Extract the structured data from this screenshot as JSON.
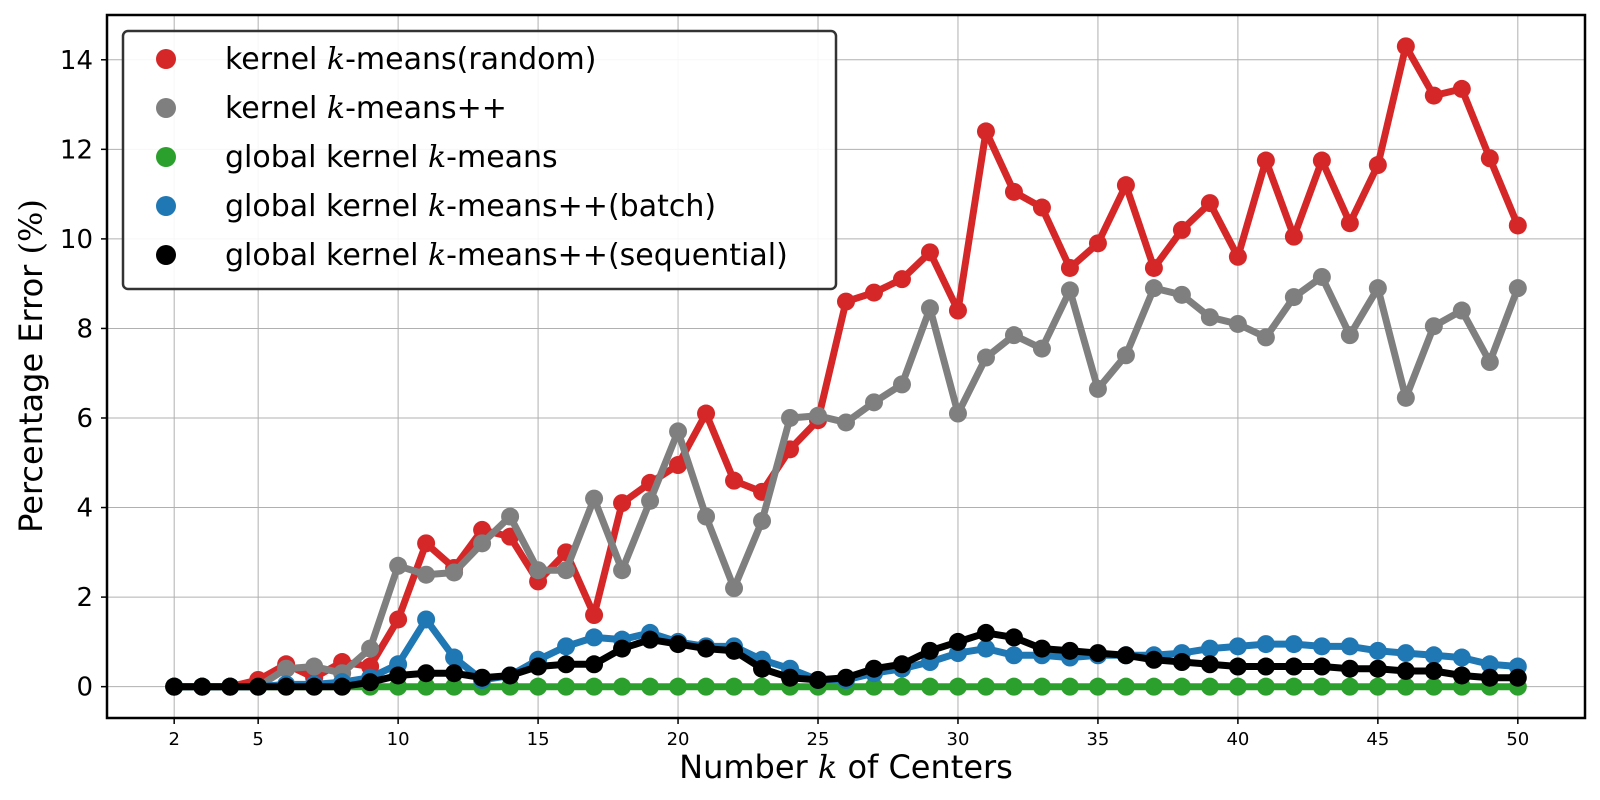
{
  "chart_data": {
    "type": "line",
    "title": "",
    "xlabel": "Number k of Centers",
    "xlabel_parts": [
      "Number ",
      "k",
      " of Centers"
    ],
    "ylabel": "Percentage Error (%)",
    "ylabel_parts": [
      "Percentage Error ",
      "(%)"
    ],
    "xlim": [
      -0.4,
      52.4
    ],
    "ylim": [
      -0.7,
      15.0
    ],
    "xticks": [
      2,
      5,
      10,
      15,
      20,
      25,
      30,
      35,
      40,
      45,
      50
    ],
    "xtick_labels": [
      "2",
      "5",
      "10",
      "15",
      "20",
      "25",
      "30",
      "35",
      "40",
      "45",
      "50"
    ],
    "yticks": [
      0,
      2,
      4,
      6,
      8,
      10,
      12,
      14
    ],
    "ytick_labels": [
      "0",
      "2",
      "4",
      "6",
      "8",
      "10",
      "12",
      "14"
    ],
    "grid": true,
    "legend_position": "top-left",
    "x": [
      2,
      3,
      4,
      5,
      6,
      7,
      8,
      9,
      10,
      11,
      12,
      13,
      14,
      15,
      16,
      17,
      18,
      19,
      20,
      21,
      22,
      23,
      24,
      25,
      26,
      27,
      28,
      29,
      30,
      31,
      32,
      33,
      34,
      35,
      36,
      37,
      38,
      39,
      40,
      41,
      42,
      43,
      44,
      45,
      46,
      47,
      48,
      49,
      50
    ],
    "series": [
      {
        "name": "kernel k-means(random)",
        "name_parts": [
          "kernel ",
          "k",
          "-means(random)"
        ],
        "color": "#d62728",
        "values": [
          0,
          0,
          0,
          0.15,
          0.5,
          0.2,
          0.55,
          0.45,
          1.5,
          3.2,
          2.65,
          3.5,
          3.35,
          2.35,
          3.0,
          1.6,
          4.1,
          4.55,
          4.95,
          6.1,
          4.6,
          4.35,
          5.3,
          5.95,
          8.6,
          8.8,
          9.1,
          9.7,
          8.4,
          12.4,
          11.05,
          10.7,
          9.35,
          9.9,
          11.2,
          9.35,
          10.2,
          10.8,
          9.6,
          11.75,
          10.05,
          11.75,
          10.35,
          11.65,
          14.3,
          13.2,
          13.35,
          11.8,
          10.3
        ]
      },
      {
        "name": "kernel k-means++",
        "name_parts": [
          "kernel ",
          "k",
          "-means++"
        ],
        "color": "#7f7f7f",
        "values": [
          0,
          0,
          0,
          0,
          0.4,
          0.45,
          0.3,
          0.85,
          2.7,
          2.5,
          2.55,
          3.2,
          3.8,
          2.6,
          2.6,
          4.2,
          2.6,
          4.15,
          5.7,
          3.8,
          2.2,
          3.7,
          6.0,
          6.05,
          5.9,
          6.35,
          6.75,
          8.45,
          6.1,
          7.35,
          7.85,
          7.55,
          8.85,
          6.65,
          7.4,
          8.9,
          8.75,
          8.25,
          8.1,
          7.8,
          8.7,
          9.15,
          7.85,
          8.9,
          6.45,
          8.05,
          8.4,
          7.25,
          8.9
        ]
      },
      {
        "name": "global kernel k-means",
        "name_parts": [
          "global kernel ",
          "k",
          "-means"
        ],
        "color": "#2ca02c",
        "values": [
          0,
          0,
          0,
          0,
          0,
          0,
          0,
          0,
          0,
          0,
          0,
          0,
          0,
          0,
          0,
          0,
          0,
          0,
          0,
          0,
          0,
          0,
          0,
          0,
          0,
          0,
          0,
          0,
          0,
          0,
          0,
          0,
          0,
          0,
          0,
          0,
          0,
          0,
          0,
          0,
          0,
          0,
          0,
          0,
          0,
          0,
          0,
          0,
          0
        ]
      },
      {
        "name": "global kernel k-means++(batch)",
        "name_parts": [
          "global kernel ",
          "k",
          "-means++(batch)"
        ],
        "color": "#1f77b4",
        "values": [
          0,
          0,
          0,
          0,
          0.05,
          0.05,
          0.1,
          0.2,
          0.5,
          1.5,
          0.65,
          0.15,
          0.25,
          0.6,
          0.9,
          1.1,
          1.05,
          1.2,
          1.0,
          0.9,
          0.9,
          0.6,
          0.4,
          0.15,
          0.15,
          0.3,
          0.4,
          0.55,
          0.75,
          0.85,
          0.7,
          0.7,
          0.65,
          0.7,
          0.7,
          0.7,
          0.75,
          0.85,
          0.9,
          0.95,
          0.95,
          0.9,
          0.9,
          0.8,
          0.75,
          0.7,
          0.65,
          0.5,
          0.45
        ]
      },
      {
        "name": "global kernel k-means++(sequential)",
        "name_parts": [
          "global kernel ",
          "k",
          "-means++(sequential)"
        ],
        "color": "#000000",
        "values": [
          0,
          0,
          0,
          0,
          0,
          0,
          0,
          0.1,
          0.25,
          0.3,
          0.3,
          0.2,
          0.25,
          0.45,
          0.5,
          0.5,
          0.85,
          1.05,
          0.95,
          0.85,
          0.8,
          0.4,
          0.2,
          0.15,
          0.2,
          0.4,
          0.5,
          0.8,
          1.0,
          1.2,
          1.1,
          0.85,
          0.8,
          0.75,
          0.7,
          0.6,
          0.55,
          0.5,
          0.45,
          0.45,
          0.45,
          0.45,
          0.4,
          0.4,
          0.35,
          0.35,
          0.25,
          0.2,
          0.2
        ]
      }
    ]
  }
}
